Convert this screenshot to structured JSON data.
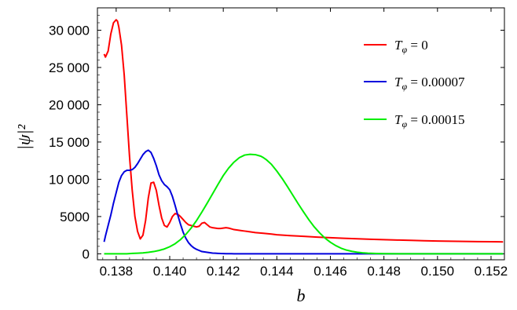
{
  "chart_data": {
    "type": "line",
    "xlabel": "b",
    "ylabel": "|ψ|²",
    "xlim": [
      0.1373,
      0.1525
    ],
    "ylim": [
      -800,
      33000
    ],
    "xticks": [
      "0.138",
      "0.140",
      "0.142",
      "0.144",
      "0.146",
      "0.148",
      "0.150",
      "0.152"
    ],
    "xtick_values": [
      0.138,
      0.14,
      0.142,
      0.144,
      0.146,
      0.148,
      0.15,
      0.152
    ],
    "yticks": [
      "0",
      "5000",
      "10 000",
      "15 000",
      "20 000",
      "25 000",
      "30 000"
    ],
    "ytick_values": [
      0,
      5000,
      10000,
      15000,
      20000,
      25000,
      30000
    ],
    "legend_position": "top-right",
    "series": [
      {
        "name": "T_φ = 0",
        "legend_main": "T",
        "legend_sub": "φ",
        "legend_rest": " = 0",
        "color": "#ff0000",
        "x": [
          0.13755,
          0.1376,
          0.1377,
          0.1378,
          0.1379,
          0.138,
          0.13805,
          0.1381,
          0.1382,
          0.1383,
          0.1384,
          0.1385,
          0.1386,
          0.1387,
          0.1388,
          0.1389,
          0.139,
          0.1391,
          0.1392,
          0.1393,
          0.1394,
          0.1395,
          0.1396,
          0.1397,
          0.1398,
          0.1399,
          0.14,
          0.1401,
          0.1402,
          0.1403,
          0.1404,
          0.1405,
          0.1406,
          0.1407,
          0.1408,
          0.1409,
          0.141,
          0.1411,
          0.1412,
          0.1413,
          0.1414,
          0.1415,
          0.1416,
          0.1417,
          0.1418,
          0.1419,
          0.142,
          0.1421,
          0.1422,
          0.1423,
          0.1424,
          0.1425,
          0.1426,
          0.1427,
          0.1428,
          0.1429,
          0.143,
          0.1432,
          0.1435,
          0.1438,
          0.144,
          0.1445,
          0.145,
          0.1455,
          0.146,
          0.1465,
          0.147,
          0.1475,
          0.148,
          0.1485,
          0.149,
          0.1495,
          0.15,
          0.1505,
          0.151,
          0.1515,
          0.152,
          0.15245
        ],
        "y": [
          26800,
          26400,
          27200,
          29500,
          31000,
          31400,
          31200,
          30400,
          28000,
          24000,
          18500,
          13000,
          8500,
          5000,
          3000,
          2000,
          2500,
          4500,
          7500,
          9500,
          9600,
          8500,
          6500,
          4800,
          3800,
          3600,
          4200,
          5000,
          5400,
          5300,
          5000,
          4600,
          4200,
          3900,
          3800,
          3700,
          3600,
          3700,
          4100,
          4200,
          3900,
          3600,
          3500,
          3450,
          3400,
          3400,
          3450,
          3500,
          3450,
          3350,
          3250,
          3200,
          3150,
          3100,
          3050,
          3000,
          2950,
          2850,
          2750,
          2650,
          2560,
          2440,
          2340,
          2240,
          2160,
          2080,
          2010,
          1950,
          1900,
          1850,
          1800,
          1760,
          1720,
          1690,
          1660,
          1640,
          1620,
          1600
        ]
      },
      {
        "name": "T_φ = 0.00007",
        "legend_main": "T",
        "legend_sub": "φ",
        "legend_rest": " = 0.00007",
        "color": "#0000dd",
        "x": [
          0.13755,
          0.1376,
          0.1377,
          0.1378,
          0.1379,
          0.138,
          0.1381,
          0.1382,
          0.1383,
          0.1384,
          0.1385,
          0.1386,
          0.1387,
          0.1388,
          0.1389,
          0.139,
          0.1391,
          0.1392,
          0.1393,
          0.1394,
          0.1395,
          0.1396,
          0.1397,
          0.1398,
          0.1399,
          0.14,
          0.1401,
          0.1402,
          0.1403,
          0.1404,
          0.1405,
          0.1406,
          0.1407,
          0.1408,
          0.1409,
          0.141,
          0.1411,
          0.1412,
          0.1413,
          0.1414,
          0.1415,
          0.1416,
          0.1417,
          0.1418,
          0.1419,
          0.142,
          0.1421,
          0.1422,
          0.1423,
          0.1424,
          0.1425,
          0.1426,
          0.1427,
          0.1428,
          0.1429,
          0.143,
          0.1432,
          0.1434,
          0.1436,
          0.1438,
          0.144,
          0.1445,
          0.145,
          0.1455,
          0.146,
          0.147,
          0.148,
          0.149,
          0.15,
          0.151,
          0.152,
          0.15245
        ],
        "y": [
          1600,
          2400,
          3800,
          5200,
          6800,
          8200,
          9600,
          10500,
          11000,
          11200,
          11200,
          11300,
          11600,
          12100,
          12700,
          13300,
          13700,
          13900,
          13600,
          12800,
          11800,
          10600,
          9800,
          9300,
          9000,
          8600,
          7700,
          6500,
          5200,
          4000,
          2900,
          2100,
          1500,
          1100,
          800,
          600,
          450,
          300,
          250,
          200,
          150,
          100,
          80,
          60,
          40,
          30,
          20,
          15,
          10,
          5,
          0,
          0,
          0,
          0,
          0,
          0,
          0,
          0,
          0,
          0,
          0,
          0,
          0,
          0,
          0,
          0,
          0,
          0,
          0,
          0,
          0,
          0
        ]
      },
      {
        "name": "T_φ = 0.00015",
        "legend_main": "T",
        "legend_sub": "φ",
        "legend_rest": " = 0.00015",
        "color": "#00ee00",
        "x": [
          0.13755,
          0.1378,
          0.138,
          0.1382,
          0.1384,
          0.1386,
          0.1388,
          0.139,
          0.1392,
          0.1394,
          0.1396,
          0.1398,
          0.14,
          0.1402,
          0.1404,
          0.1406,
          0.1408,
          0.141,
          0.1412,
          0.1414,
          0.1416,
          0.1418,
          0.142,
          0.1422,
          0.1424,
          0.1426,
          0.1428,
          0.143,
          0.1432,
          0.1434,
          0.1435,
          0.1436,
          0.1438,
          0.144,
          0.1442,
          0.1444,
          0.1446,
          0.1448,
          0.145,
          0.1452,
          0.1454,
          0.1456,
          0.1458,
          0.146,
          0.1462,
          0.1464,
          0.1466,
          0.1468,
          0.147,
          0.1472,
          0.1474,
          0.1476,
          0.1478,
          0.148,
          0.149,
          0.15,
          0.151,
          0.152,
          0.15245
        ],
        "y": [
          0,
          0,
          0,
          0,
          0,
          50,
          80,
          120,
          200,
          300,
          450,
          650,
          950,
          1350,
          1900,
          2600,
          3450,
          4450,
          5600,
          6800,
          8050,
          9300,
          10500,
          11500,
          12300,
          12900,
          13250,
          13350,
          13300,
          13100,
          12900,
          12650,
          12000,
          11100,
          10100,
          9000,
          7850,
          6700,
          5600,
          4550,
          3600,
          2800,
          2100,
          1550,
          1100,
          750,
          500,
          330,
          210,
          130,
          80,
          50,
          30,
          15,
          0,
          0,
          0,
          0,
          0
        ]
      }
    ]
  }
}
